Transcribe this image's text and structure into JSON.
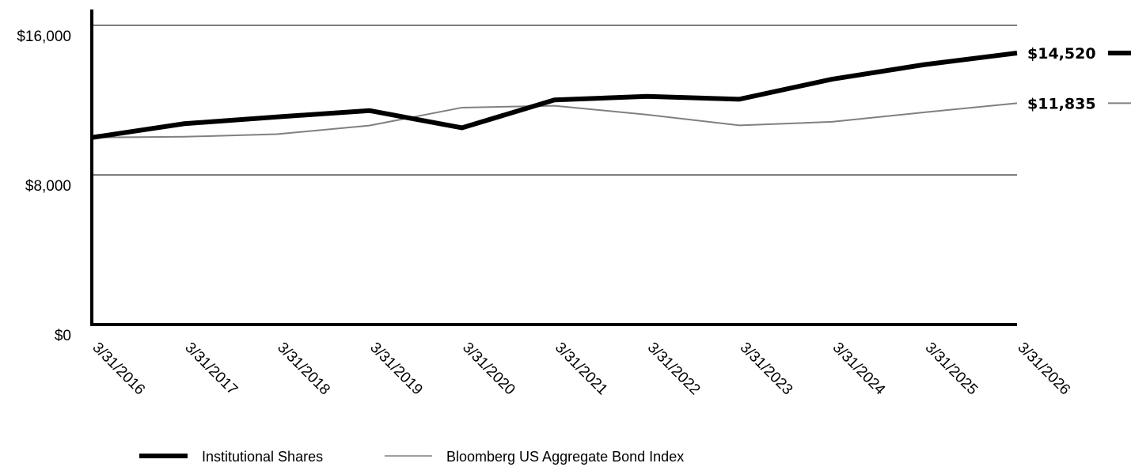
{
  "chart_data": {
    "type": "line",
    "x": [
      "3/31/2016",
      "3/31/2017",
      "3/31/2018",
      "3/31/2019",
      "3/31/2020",
      "3/31/2021",
      "3/31/2022",
      "3/31/2023",
      "3/31/2024",
      "3/31/2025",
      "3/31/2026"
    ],
    "series": [
      {
        "name": "Institutional Shares",
        "values": [
          10000,
          10740,
          11100,
          11440,
          10520,
          12010,
          12200,
          12050,
          13120,
          13900,
          14520
        ],
        "end_label": "$14,520",
        "color": "#000000",
        "style": "thick"
      },
      {
        "name": "Bloomberg US Aggregate Bond Index",
        "values": [
          10000,
          10040,
          10180,
          10640,
          11600,
          11700,
          11220,
          10650,
          10840,
          11350,
          11835
        ],
        "end_label": "$11,835",
        "color": "#808080",
        "style": "thin"
      }
    ],
    "yticks": [
      {
        "value": 0,
        "label": "$0"
      },
      {
        "value": 8000,
        "label": "$8,000"
      },
      {
        "value": 16000,
        "label": "$16,000"
      }
    ],
    "ylim": [
      0,
      16000
    ],
    "grid": true,
    "legend_position": "bottom",
    "title": "",
    "xlabel": "",
    "ylabel": ""
  }
}
